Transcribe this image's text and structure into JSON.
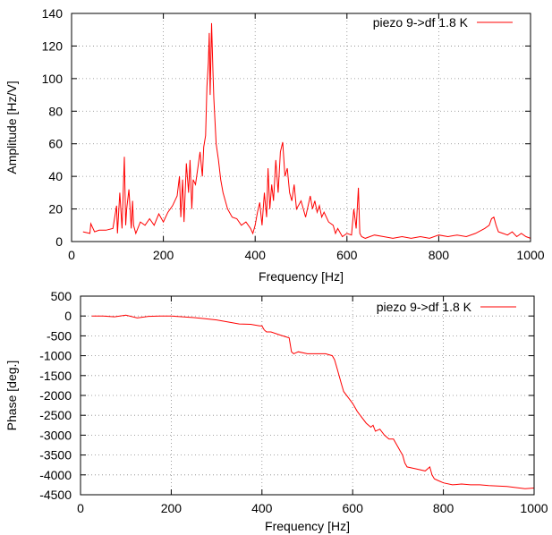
{
  "colors": {
    "series": "#ff0000",
    "grid": "#888888",
    "axis": "#000000"
  },
  "chart_data": [
    {
      "type": "line",
      "title": "",
      "xlabel": "Frequency [Hz]",
      "ylabel": "Amplitude [Hz/V]",
      "xlim": [
        0,
        1000
      ],
      "ylim": [
        0,
        140
      ],
      "xticks": [
        0,
        200,
        400,
        600,
        800,
        1000
      ],
      "yticks": [
        0,
        20,
        40,
        60,
        80,
        100,
        120,
        140
      ],
      "grid": true,
      "legend_position": "top-right",
      "series": [
        {
          "name": "piezo 9->df 1.8 K",
          "color": "#ff0000",
          "x": [
            25,
            40,
            42,
            50,
            60,
            75,
            90,
            98,
            100,
            105,
            110,
            115,
            118,
            120,
            125,
            130,
            133,
            135,
            140,
            150,
            160,
            170,
            180,
            190,
            200,
            210,
            220,
            230,
            235,
            238,
            242,
            245,
            250,
            255,
            258,
            262,
            265,
            270,
            275,
            280,
            285,
            288,
            292,
            295,
            298,
            300,
            302,
            305,
            308,
            310,
            315,
            320,
            325,
            330,
            340,
            350,
            360,
            370,
            380,
            390,
            395,
            400,
            405,
            410,
            415,
            420,
            425,
            428,
            432,
            436,
            440,
            445,
            450,
            455,
            460,
            465,
            470,
            475,
            480,
            485,
            490,
            500,
            510,
            520,
            525,
            530,
            535,
            540,
            545,
            550,
            560,
            570,
            575,
            580,
            590,
            600,
            610,
            615,
            620,
            625,
            628,
            632,
            640,
            650,
            660,
            680,
            700,
            720,
            740,
            760,
            780,
            800,
            820,
            840,
            860,
            880,
            900,
            910,
            915,
            920,
            925,
            930,
            940,
            950,
            960,
            970,
            980,
            990,
            1000
          ],
          "y": [
            6,
            5,
            11,
            6,
            7,
            7,
            8,
            22,
            5,
            30,
            8,
            52,
            10,
            20,
            32,
            8,
            25,
            10,
            5,
            12,
            10,
            14,
            10,
            17,
            12,
            18,
            22,
            28,
            40,
            15,
            38,
            12,
            48,
            30,
            50,
            20,
            38,
            35,
            45,
            55,
            40,
            58,
            65,
            95,
            110,
            128,
            90,
            134,
            105,
            88,
            60,
            50,
            38,
            30,
            20,
            15,
            14,
            10,
            12,
            8,
            5,
            10,
            18,
            24,
            10,
            30,
            15,
            45,
            20,
            35,
            25,
            50,
            30,
            55,
            61,
            40,
            45,
            30,
            25,
            35,
            20,
            25,
            15,
            28,
            20,
            25,
            18,
            22,
            15,
            18,
            12,
            10,
            5,
            8,
            3,
            5,
            4,
            20,
            8,
            33,
            5,
            3,
            2,
            3,
            4,
            3,
            2,
            3,
            2,
            3,
            2,
            4,
            3,
            4,
            3,
            5,
            8,
            10,
            14,
            15,
            10,
            6,
            5,
            4,
            6,
            3,
            5,
            3,
            2
          ]
        }
      ]
    },
    {
      "type": "line",
      "title": "",
      "xlabel": "Frequency [Hz]",
      "ylabel": "Phase [deg.]",
      "xlim": [
        0,
        1000
      ],
      "ylim": [
        -4500,
        500
      ],
      "xticks": [
        0,
        200,
        400,
        600,
        800,
        1000
      ],
      "yticks": [
        500,
        0,
        -500,
        -1000,
        -1500,
        -2000,
        -2500,
        -3000,
        -3500,
        -4000,
        -4500
      ],
      "grid": true,
      "legend_position": "top-right",
      "series": [
        {
          "name": "piezo 9->df 1.8 K",
          "color": "#ff0000",
          "x": [
            25,
            50,
            75,
            100,
            125,
            150,
            175,
            200,
            225,
            250,
            275,
            300,
            325,
            350,
            375,
            395,
            400,
            405,
            410,
            420,
            440,
            460,
            465,
            470,
            480,
            500,
            520,
            540,
            555,
            560,
            565,
            570,
            575,
            580,
            590,
            600,
            610,
            620,
            630,
            640,
            645,
            650,
            660,
            670,
            680,
            690,
            700,
            705,
            710,
            715,
            720,
            740,
            760,
            770,
            775,
            780,
            790,
            800,
            820,
            840,
            860,
            880,
            900,
            920,
            940,
            960,
            980,
            1000
          ],
          "y": [
            0,
            0,
            -20,
            20,
            -50,
            -10,
            0,
            0,
            -20,
            -40,
            -70,
            -100,
            -150,
            -200,
            -210,
            -250,
            -250,
            -350,
            -400,
            -400,
            -480,
            -550,
            -900,
            -950,
            -900,
            -950,
            -950,
            -950,
            -1000,
            -1100,
            -1300,
            -1500,
            -1700,
            -1900,
            -2050,
            -2200,
            -2400,
            -2550,
            -2700,
            -2800,
            -2750,
            -2900,
            -2850,
            -3000,
            -3100,
            -3100,
            -3300,
            -3400,
            -3500,
            -3700,
            -3800,
            -3850,
            -3900,
            -3800,
            -4000,
            -4100,
            -4150,
            -4200,
            -4250,
            -4230,
            -4250,
            -4250,
            -4270,
            -4280,
            -4290,
            -4320,
            -4350,
            -4330
          ]
        }
      ]
    }
  ]
}
